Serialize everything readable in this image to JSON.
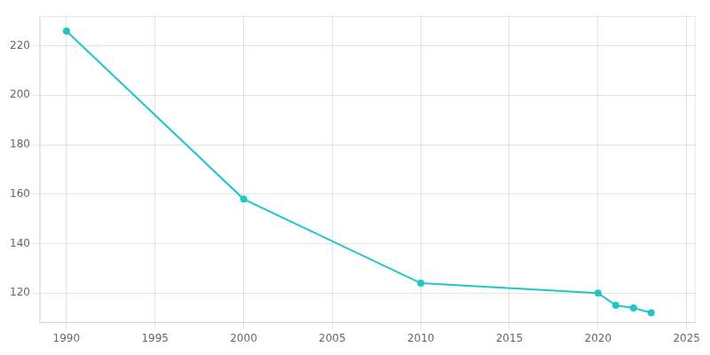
{
  "chart_data": {
    "type": "line",
    "x": [
      1990,
      2000,
      2010,
      2020,
      2021,
      2022,
      2023
    ],
    "values": [
      226,
      158,
      124,
      120,
      115,
      114,
      112
    ],
    "color": "#22c5c5",
    "marker": "circle",
    "xlim": [
      1988.5,
      2025.5
    ],
    "ylim": [
      108,
      232
    ],
    "xticks": [
      1990,
      1995,
      2000,
      2005,
      2010,
      2015,
      2020,
      2025
    ],
    "yticks": [
      120,
      140,
      160,
      180,
      200,
      220
    ],
    "grid": true
  }
}
